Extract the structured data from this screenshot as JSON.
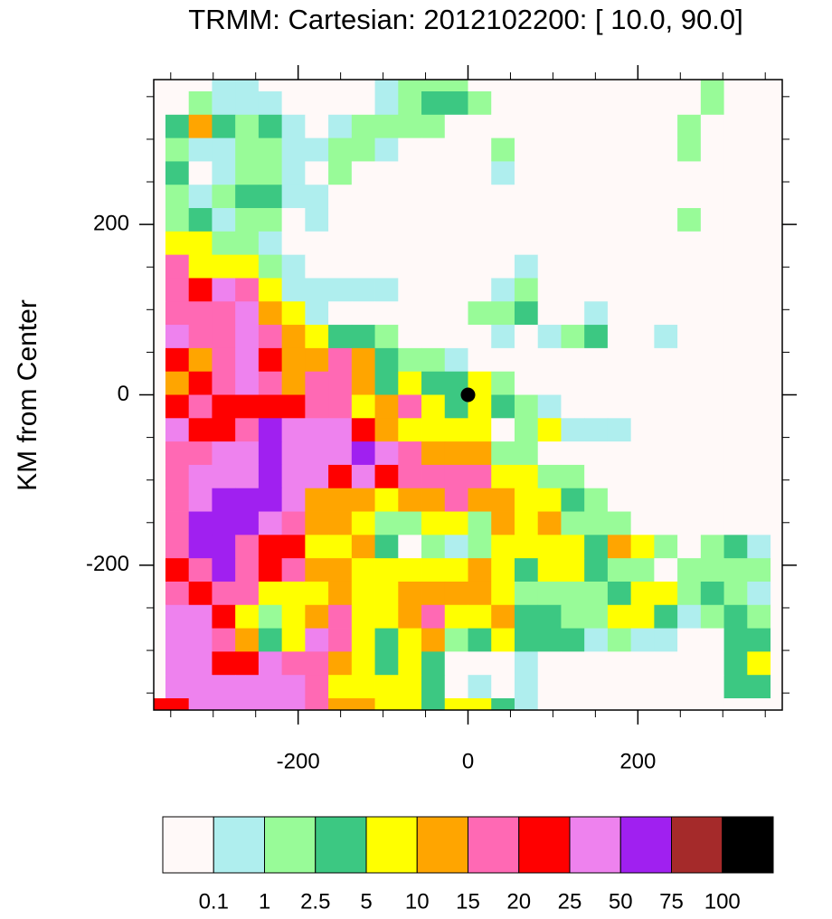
{
  "chart_data": {
    "type": "heatmap",
    "title": "TRMM: Cartesian: 2012102200: [ 10.0, 90.0]",
    "ylabel": "KM from Center",
    "xlim": [
      -370,
      370
    ],
    "ylim": [
      -370,
      370
    ],
    "xticks": [
      -200,
      0,
      200
    ],
    "yticks": [
      -200,
      0,
      200
    ],
    "minor_ticks": [
      -350,
      -300,
      -250,
      -150,
      -100,
      -50,
      50,
      100,
      150,
      250,
      300,
      350
    ],
    "x": [
      -369.9,
      -342.5,
      -315.1,
      -287.7,
      -260.3,
      -232.9,
      -205.5,
      -178.1,
      -150.7,
      -123.3,
      -95.9,
      -68.5,
      -41.1,
      -13.7,
      13.7,
      41.1,
      68.5,
      95.9,
      123.3,
      150.7,
      178.1,
      205.5,
      232.9,
      260.3,
      287.7,
      315.1,
      342.5,
      369.9
    ],
    "y": [
      369.9,
      342.5,
      315.1,
      287.7,
      260.3,
      232.9,
      205.5,
      178.1,
      150.7,
      123.3,
      95.9,
      68.5,
      41.1,
      13.7,
      -13.7,
      -41.1,
      -68.5,
      -95.9,
      -123.3,
      -150.7,
      -178.1,
      -205.5,
      -232.9,
      -260.3,
      -287.7,
      -315.1,
      -342.5,
      -369.9
    ],
    "z": [
      [
        0,
        0,
        0,
        0.5,
        0.5,
        0,
        0,
        0,
        0,
        0,
        0.5,
        2,
        2,
        2,
        0,
        0,
        0,
        0,
        0,
        0,
        0,
        0,
        0,
        0,
        2,
        0,
        0,
        0
      ],
      [
        0,
        0,
        2,
        0.5,
        0.5,
        0.5,
        0,
        0,
        0,
        0,
        0.5,
        2,
        4,
        4,
        2,
        0,
        0,
        0,
        0,
        0,
        0,
        0,
        0,
        0,
        2,
        0,
        0,
        0
      ],
      [
        0,
        4,
        12,
        4,
        2,
        4,
        0.5,
        0,
        0.5,
        2,
        2,
        2,
        2,
        0,
        0,
        0,
        0,
        0,
        0,
        0,
        0,
        0,
        0,
        2,
        0,
        0,
        0,
        0
      ],
      [
        0,
        2,
        0.5,
        0.5,
        2,
        2,
        0.5,
        0.5,
        2,
        2,
        0.5,
        0,
        0,
        0,
        0,
        2,
        0,
        0,
        0,
        0,
        0,
        0,
        0,
        2,
        0,
        0,
        0,
        0
      ],
      [
        0,
        4,
        0,
        0.5,
        2,
        2,
        0.5,
        0,
        2,
        0,
        0,
        0,
        0,
        0,
        0,
        0.5,
        0,
        0,
        0,
        0,
        0,
        0,
        0,
        0,
        0,
        0,
        0,
        0
      ],
      [
        0,
        2,
        0.5,
        2,
        4,
        4,
        0.5,
        0.5,
        0,
        0,
        0,
        0,
        0,
        0,
        0,
        0,
        0,
        0,
        0,
        0,
        0,
        0,
        0,
        0,
        0,
        0,
        0,
        0
      ],
      [
        0,
        2,
        4,
        0.5,
        2,
        2,
        0,
        0.5,
        0,
        0,
        0,
        0,
        0,
        0,
        0,
        0,
        0,
        0,
        0,
        0,
        0,
        0,
        0,
        2,
        0,
        0,
        0,
        0
      ],
      [
        0,
        7,
        7,
        2,
        2,
        0.5,
        0,
        0,
        0,
        0,
        0,
        0,
        0,
        0,
        0,
        0,
        0,
        0,
        0,
        0,
        0,
        0,
        0,
        0,
        0,
        0,
        0,
        0
      ],
      [
        0,
        17,
        7,
        7,
        7,
        2,
        0.5,
        0,
        0,
        0,
        0,
        0,
        0,
        0,
        0,
        0,
        0.5,
        0,
        0,
        0,
        0,
        0,
        0,
        0,
        0,
        0,
        0,
        0
      ],
      [
        0,
        17,
        22,
        35,
        17,
        7,
        0.5,
        0.5,
        0.5,
        0.5,
        0.5,
        0,
        0,
        0,
        0,
        0.5,
        2,
        0,
        0,
        0,
        0,
        0,
        0,
        0,
        0,
        0,
        0,
        0
      ],
      [
        0,
        17,
        17,
        17,
        35,
        12,
        7,
        0.5,
        0,
        0,
        0,
        0,
        0,
        0,
        2,
        2,
        4,
        0,
        0,
        0.5,
        0,
        0,
        0,
        0,
        0,
        0,
        0,
        0
      ],
      [
        0,
        35,
        17,
        17,
        35,
        17,
        12,
        7,
        4,
        4,
        2,
        0,
        0,
        0,
        0,
        0.5,
        0,
        0.5,
        2,
        4,
        0,
        0,
        0.5,
        0,
        0,
        0,
        0,
        0
      ],
      [
        0,
        22,
        12,
        17,
        35,
        22,
        12,
        12,
        17,
        12,
        4,
        2,
        2,
        0.5,
        0,
        0,
        0,
        0,
        0,
        0,
        0,
        0,
        0,
        0,
        0,
        0,
        0,
        0
      ],
      [
        0,
        12,
        22,
        17,
        35,
        17,
        12,
        17,
        17,
        12,
        4,
        7,
        4,
        4,
        7,
        2,
        0,
        0,
        0,
        0,
        0,
        0,
        0,
        0,
        0,
        0,
        0,
        0
      ],
      [
        0,
        22,
        17,
        22,
        22,
        22,
        22,
        17,
        17,
        7,
        12,
        17,
        7,
        4,
        7,
        4,
        2,
        0.5,
        0,
        0,
        0,
        0,
        0,
        0,
        0,
        0,
        0,
        0
      ],
      [
        0,
        35,
        22,
        22,
        17,
        60,
        35,
        35,
        35,
        22,
        12,
        7,
        7,
        7,
        7,
        0,
        2,
        7,
        0.5,
        0.5,
        0.5,
        0,
        0,
        0,
        0,
        0,
        0,
        0
      ],
      [
        0,
        17,
        17,
        35,
        35,
        60,
        35,
        35,
        35,
        60,
        35,
        17,
        12,
        12,
        12,
        2,
        2,
        0,
        0,
        0,
        0,
        0,
        0,
        0,
        0,
        0,
        0,
        0
      ],
      [
        0,
        17,
        35,
        35,
        35,
        60,
        35,
        35,
        22,
        35,
        22,
        17,
        17,
        17,
        17,
        7,
        7,
        2,
        2,
        0,
        0,
        0,
        0,
        0,
        0,
        0,
        0,
        0
      ],
      [
        0,
        17,
        35,
        60,
        60,
        60,
        35,
        12,
        12,
        12,
        7,
        12,
        12,
        17,
        12,
        12,
        7,
        7,
        4,
        2,
        0,
        0,
        0,
        0,
        0,
        0,
        0,
        0
      ],
      [
        0,
        17,
        60,
        60,
        60,
        35,
        17,
        12,
        12,
        7,
        2,
        2,
        7,
        7,
        2,
        12,
        7,
        12,
        2,
        2,
        2,
        0,
        0,
        0,
        0,
        0,
        0,
        0
      ],
      [
        0,
        17,
        60,
        60,
        17,
        22,
        22,
        7,
        7,
        12,
        4,
        0,
        2,
        0.5,
        2,
        7,
        7,
        7,
        7,
        4,
        12,
        7,
        2,
        0,
        2,
        4,
        0.5,
        0
      ],
      [
        0,
        22,
        17,
        60,
        17,
        22,
        17,
        12,
        12,
        7,
        7,
        7,
        7,
        7,
        12,
        7,
        4,
        7,
        7,
        4,
        2,
        2,
        0,
        2,
        2,
        2,
        2,
        0
      ],
      [
        0,
        17,
        22,
        17,
        17,
        7,
        7,
        7,
        12,
        7,
        7,
        12,
        12,
        12,
        12,
        7,
        2,
        2,
        2,
        2,
        4,
        7,
        7,
        2,
        4,
        2,
        0.5,
        0
      ],
      [
        0,
        35,
        35,
        22,
        7,
        2,
        7,
        12,
        17,
        7,
        7,
        12,
        17,
        7,
        7,
        12,
        4,
        4,
        2,
        2,
        7,
        7,
        4,
        0.5,
        2,
        4,
        2,
        0
      ],
      [
        0,
        35,
        35,
        17,
        12,
        4,
        7,
        35,
        17,
        7,
        4,
        7,
        12,
        2,
        4,
        7,
        4,
        4,
        4,
        0.5,
        2,
        0.5,
        0.5,
        0,
        0,
        4,
        4,
        0
      ],
      [
        0,
        35,
        35,
        22,
        22,
        35,
        17,
        17,
        12,
        7,
        4,
        7,
        4,
        0,
        0,
        0,
        0.5,
        0,
        0,
        0,
        0,
        0,
        0,
        0,
        0,
        4,
        7,
        0
      ],
      [
        0,
        35,
        35,
        35,
        35,
        35,
        35,
        17,
        7,
        7,
        7,
        7,
        4,
        0,
        0.5,
        0,
        0.5,
        0,
        0,
        0,
        0,
        0,
        0,
        0,
        0,
        4,
        4,
        0
      ],
      [
        22,
        22,
        35,
        35,
        35,
        35,
        35,
        17,
        12,
        12,
        7,
        7,
        4,
        7,
        7,
        4,
        0.5,
        0,
        0,
        0,
        0,
        0,
        0,
        0,
        0,
        0,
        0,
        0
      ]
    ],
    "levels": [
      0.1,
      1,
      2.5,
      5,
      10,
      15,
      20,
      25,
      50,
      75,
      100
    ],
    "colors": [
      "#fff9f8",
      "#afeeee",
      "#98fb98",
      "#3cc882",
      "#ffff00",
      "#ffa500",
      "#ff69b4",
      "#ff0000",
      "#ee82ee",
      "#a020f0",
      "#a52a2a",
      "#000000"
    ],
    "marker": {
      "x": 0,
      "y": 0,
      "color": "#000000"
    }
  }
}
